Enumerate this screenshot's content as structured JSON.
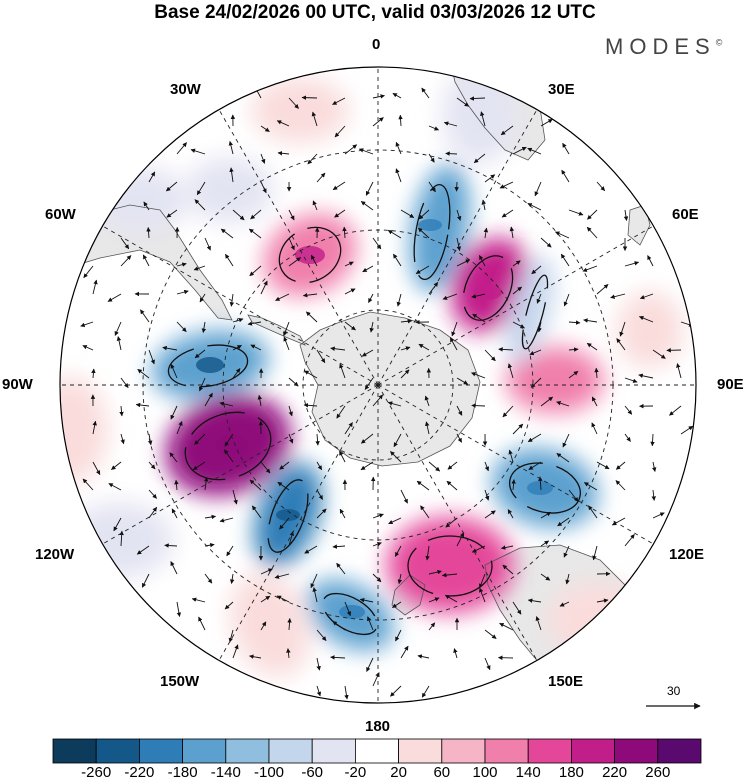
{
  "title": "Base 24/02/2026 00 UTC, valid 03/03/2026 12 UTC",
  "brand": "MODES",
  "brand_mark": "©",
  "longitude_labels": {
    "lon_0": "0",
    "lon_30e": "30E",
    "lon_60e": "60E",
    "lon_90e": "90E",
    "lon_120e": "120E",
    "lon_150e": "150E",
    "lon_180": "180",
    "lon_150w": "150W",
    "lon_120w": "120W",
    "lon_90w": "90W",
    "lon_60w": "60W",
    "lon_30w": "30W"
  },
  "reference_vector": "30",
  "colorbar": {
    "labels": [
      "-260",
      "-220",
      "-180",
      "-140",
      "-100",
      "-60",
      "-20",
      "20",
      "60",
      "100",
      "140",
      "180",
      "220",
      "260"
    ],
    "colors": [
      "#0d3b5c",
      "#14588a",
      "#2f7db7",
      "#5ba0cf",
      "#90bede",
      "#c4d6ec",
      "#e3e4f2",
      "#ffffff",
      "#fadcdc",
      "#f6b5c6",
      "#f07fab",
      "#e4479a",
      "#c21e8a",
      "#8e0a7a",
      "#5a0a6e"
    ]
  },
  "colors": {
    "land": "#e8e8e8",
    "coast": "#555555",
    "grid": "#222222",
    "arrow": "#111111"
  }
}
